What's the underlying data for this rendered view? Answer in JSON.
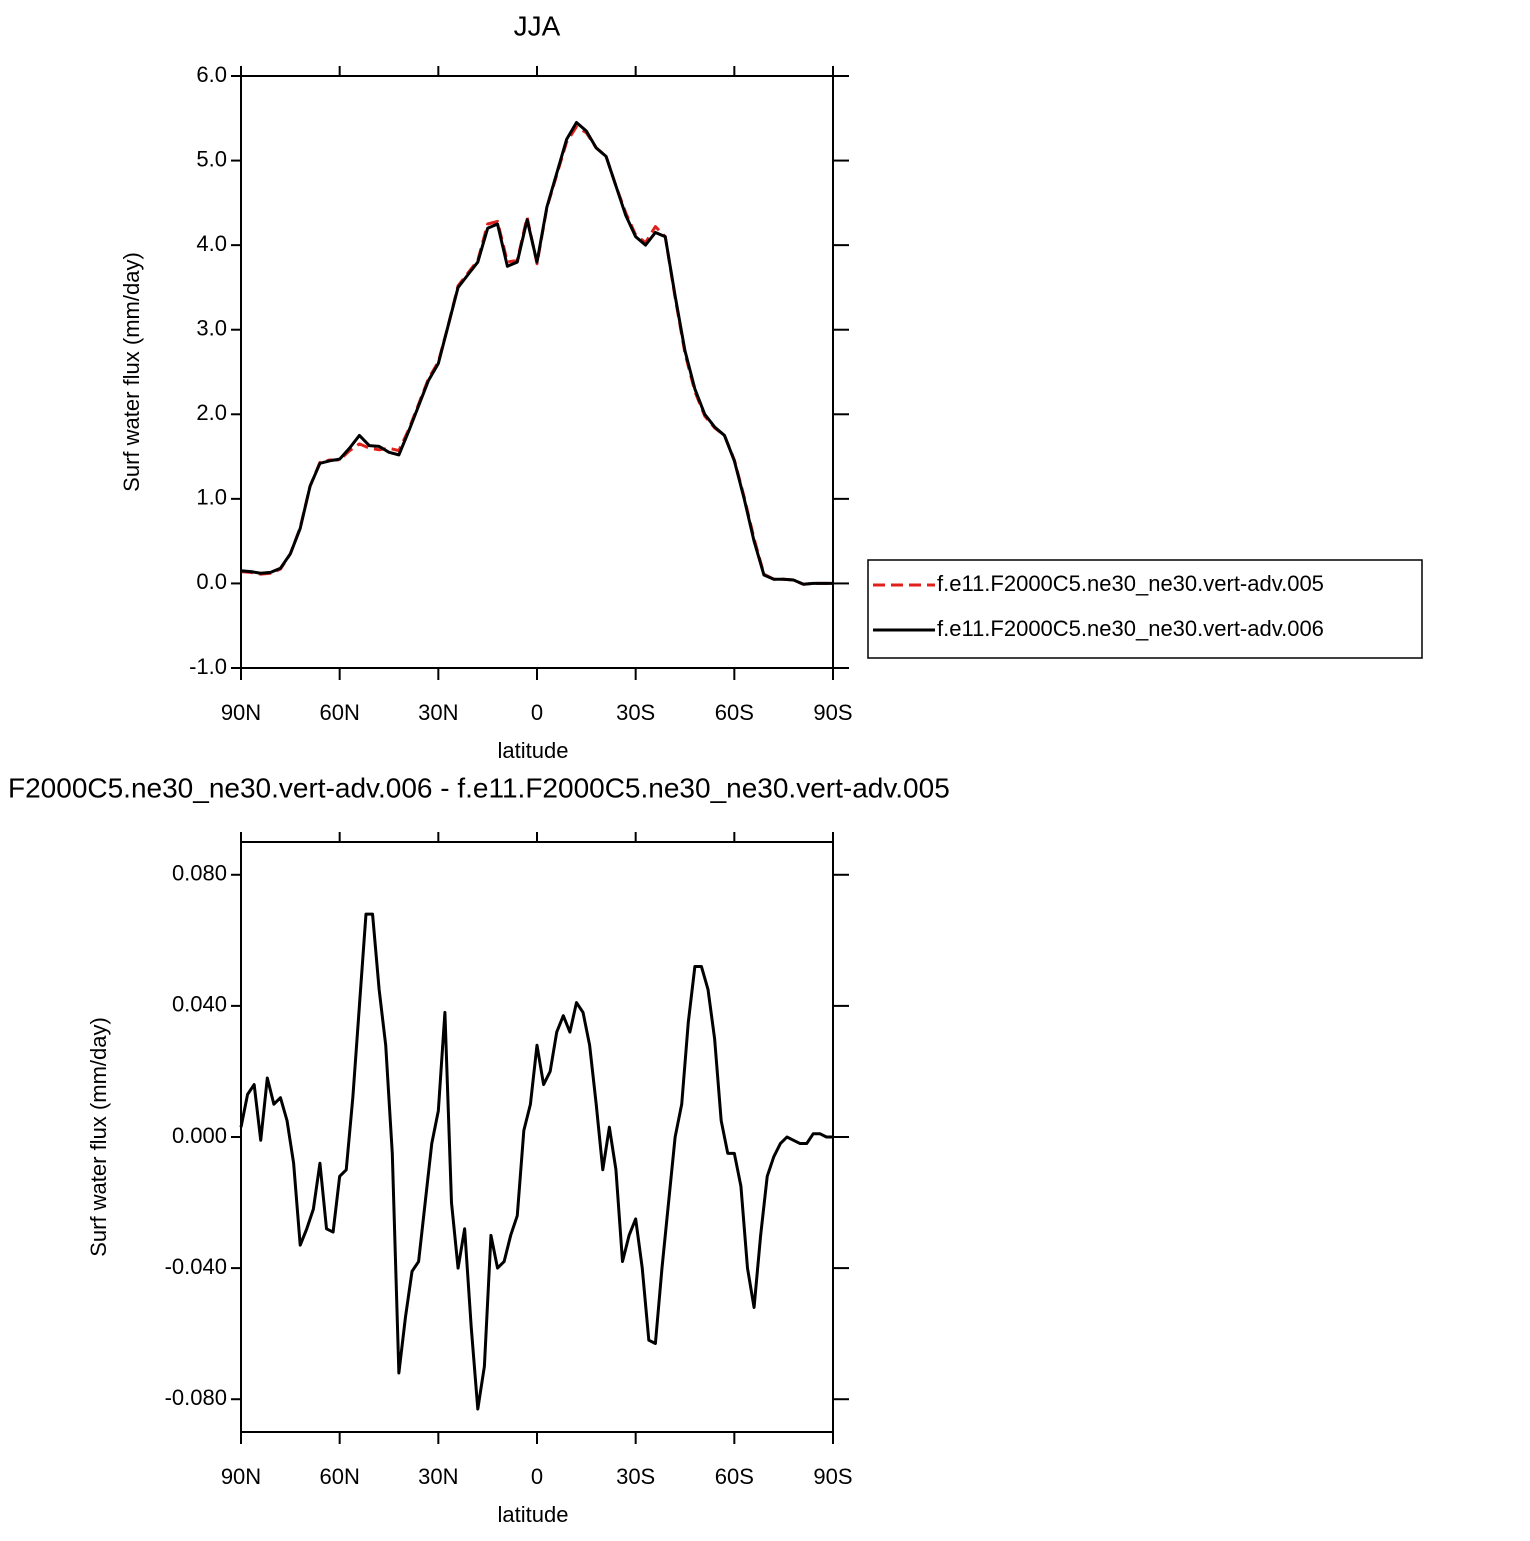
{
  "chart_data": [
    {
      "type": "line",
      "title": "JJA",
      "ylabel": "Surf water flux (mm/day)",
      "xlabel": "latitude",
      "x": [
        90,
        87,
        84,
        81,
        78,
        75,
        72,
        69,
        66,
        63,
        60,
        57,
        54,
        51,
        48,
        45,
        42,
        39,
        36,
        33,
        30,
        27,
        24,
        21,
        18,
        15,
        12,
        9,
        6,
        3,
        0,
        -3,
        -6,
        -9,
        -12,
        -15,
        -18,
        -21,
        -24,
        -27,
        -30,
        -33,
        -36,
        -39,
        -42,
        -45,
        -48,
        -51,
        -54,
        -57,
        -60,
        -63,
        -66,
        -69,
        -72,
        -75,
        -78,
        -81,
        -84,
        -87,
        -90
      ],
      "series": [
        {
          "name": "f.e11.F2000C5.ne30_ne30.vert-adv.005",
          "color": "#e0201b",
          "dash": "dashed",
          "values": [
            0.14,
            0.13,
            0.11,
            0.12,
            0.17,
            0.35,
            0.66,
            1.15,
            1.43,
            1.46,
            1.46,
            1.57,
            1.65,
            1.6,
            1.58,
            1.6,
            1.57,
            1.82,
            2.12,
            2.42,
            2.62,
            3.05,
            3.52,
            3.67,
            3.82,
            4.25,
            4.28,
            3.8,
            3.82,
            4.33,
            3.78,
            4.44,
            4.83,
            5.22,
            5.4,
            5.33,
            5.15,
            5.05,
            4.7,
            4.38,
            4.12,
            4.03,
            4.22,
            4.1,
            3.38,
            2.72,
            2.27,
            1.98,
            1.84,
            1.75,
            1.46,
            1.02,
            0.53,
            0.11,
            0.05,
            0.05,
            0.04,
            -0.01,
            0.0,
            0.0,
            0.0
          ]
        },
        {
          "name": "f.e11.F2000C5.ne30_ne30.vert-adv.006",
          "color": "#000000",
          "dash": "solid",
          "values": [
            0.15,
            0.14,
            0.12,
            0.13,
            0.18,
            0.35,
            0.65,
            1.15,
            1.42,
            1.45,
            1.47,
            1.6,
            1.75,
            1.63,
            1.62,
            1.55,
            1.52,
            1.8,
            2.1,
            2.4,
            2.6,
            3.05,
            3.5,
            3.65,
            3.8,
            4.2,
            4.25,
            3.75,
            3.8,
            4.3,
            3.8,
            4.45,
            4.85,
            5.25,
            5.45,
            5.35,
            5.15,
            5.05,
            4.7,
            4.35,
            4.1,
            4.0,
            4.15,
            4.1,
            3.4,
            2.75,
            2.3,
            2.0,
            1.85,
            1.75,
            1.45,
            1.0,
            0.5,
            0.1,
            0.05,
            0.05,
            0.04,
            -0.01,
            0.0,
            0.0,
            0.0
          ]
        }
      ],
      "xlim": [
        90,
        -90
      ],
      "xticks": [
        {
          "value": 90,
          "label": "90N"
        },
        {
          "value": 60,
          "label": "60N"
        },
        {
          "value": 30,
          "label": "30N"
        },
        0,
        {
          "value": -30,
          "label": "30S"
        },
        {
          "value": -60,
          "label": "60S"
        },
        {
          "value": -90,
          "label": "90S"
        }
      ],
      "ylim": [
        -1,
        6
      ],
      "yticks": [
        {
          "value": -1,
          "label": "-1.0"
        },
        {
          "value": 0,
          "label": "0.0"
        },
        {
          "value": 1,
          "label": "1.0"
        },
        {
          "value": 2,
          "label": "2.0"
        },
        {
          "value": 3,
          "label": "3.0"
        },
        {
          "value": 4,
          "label": "4.0"
        },
        {
          "value": 5,
          "label": "5.0"
        },
        {
          "value": 6,
          "label": "6.0"
        }
      ],
      "legend": "right"
    },
    {
      "type": "line",
      "title": "F2000C5.ne30_ne30.vert-adv.006 - f.e11.F2000C5.ne30_ne30.vert-adv.005",
      "ylabel": "Surf water flux (mm/day)",
      "xlabel": "latitude",
      "x": [
        90,
        88,
        86,
        84,
        82,
        80,
        78,
        76,
        74,
        72,
        70,
        68,
        66,
        64,
        62,
        60,
        58,
        56,
        54,
        52,
        50,
        48,
        46,
        44,
        42,
        40,
        38,
        36,
        34,
        32,
        30,
        28,
        26,
        24,
        22,
        20,
        18,
        16,
        14,
        12,
        10,
        8,
        6,
        4,
        2,
        0,
        -2,
        -4,
        -6,
        -8,
        -10,
        -12,
        -14,
        -16,
        -18,
        -20,
        -22,
        -24,
        -26,
        -28,
        -30,
        -32,
        -34,
        -36,
        -38,
        -40,
        -42,
        -44,
        -46,
        -48,
        -50,
        -52,
        -54,
        -56,
        -58,
        -60,
        -62,
        -64,
        -66,
        -68,
        -70,
        -72,
        -74,
        -76,
        -78,
        -80,
        -82,
        -84,
        -86,
        -88,
        -90
      ],
      "series": [
        {
          "color": "#000000",
          "dash": "solid",
          "values": [
            0.003,
            0.013,
            0.016,
            -0.001,
            0.018,
            0.01,
            0.012,
            0.005,
            -0.008,
            -0.033,
            -0.028,
            -0.022,
            -0.008,
            -0.028,
            -0.029,
            -0.012,
            -0.01,
            0.012,
            0.04,
            0.068,
            0.068,
            0.045,
            0.028,
            -0.005,
            -0.072,
            -0.055,
            -0.041,
            -0.038,
            -0.02,
            -0.002,
            0.008,
            0.038,
            -0.02,
            -0.04,
            -0.028,
            -0.058,
            -0.083,
            -0.07,
            -0.03,
            -0.04,
            -0.038,
            -0.03,
            -0.024,
            0.002,
            0.01,
            0.028,
            0.016,
            0.02,
            0.032,
            0.037,
            0.032,
            0.041,
            0.038,
            0.028,
            0.01,
            -0.01,
            0.003,
            -0.01,
            -0.038,
            -0.03,
            -0.025,
            -0.04,
            -0.062,
            -0.063,
            -0.04,
            -0.02,
            0.0,
            0.01,
            0.035,
            0.052,
            0.052,
            0.045,
            0.03,
            0.005,
            -0.005,
            -0.005,
            -0.015,
            -0.04,
            -0.052,
            -0.03,
            -0.012,
            -0.006,
            -0.002,
            0.0,
            -0.001,
            -0.002,
            -0.002,
            0.001,
            0.001,
            0.0,
            0.0
          ]
        }
      ],
      "xlim": [
        90,
        -90
      ],
      "xticks": [
        {
          "value": 90,
          "label": "90N"
        },
        {
          "value": 60,
          "label": "60N"
        },
        {
          "value": 30,
          "label": "30N"
        },
        0,
        {
          "value": -30,
          "label": "30S"
        },
        {
          "value": -60,
          "label": "60S"
        },
        {
          "value": -90,
          "label": "90S"
        }
      ],
      "ylim": [
        -0.09,
        0.09
      ],
      "yticks": [
        {
          "value": -0.08,
          "label": "-0.080"
        },
        {
          "value": -0.04,
          "label": "-0.040"
        },
        {
          "value": 0,
          "label": "0.000"
        },
        {
          "value": 0.04,
          "label": "0.040"
        },
        {
          "value": 0.08,
          "label": "0.080"
        }
      ]
    }
  ]
}
